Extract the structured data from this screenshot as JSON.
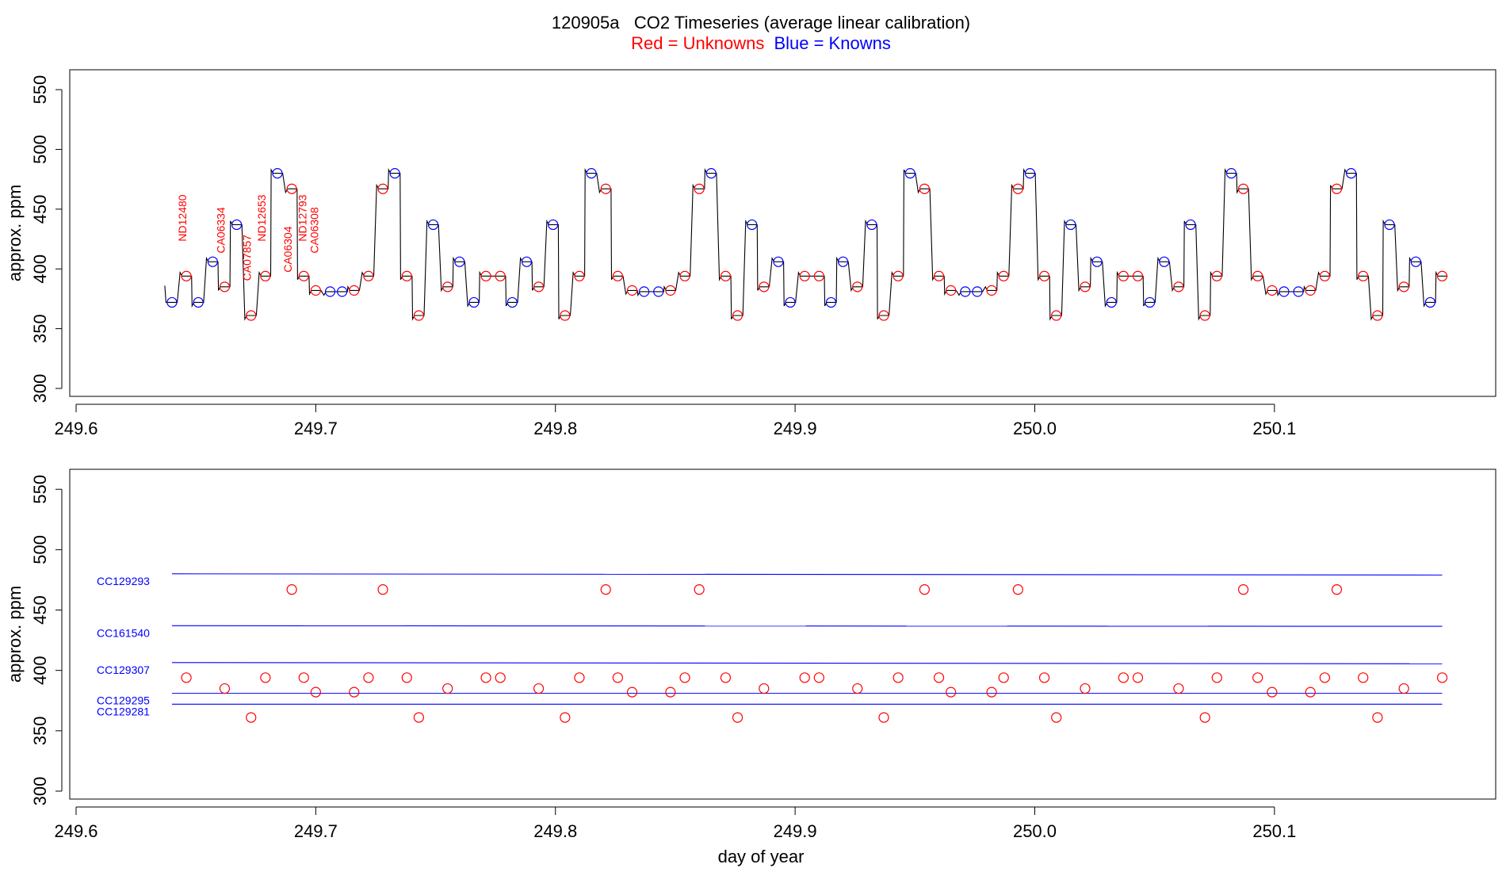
{
  "title": "120905a   CO2 Timeseries (average linear calibration)",
  "subtitle_red": "Red = Unknowns",
  "subtitle_blue": "Blue = Knowns",
  "colors": {
    "unknown": "#ff0000",
    "known": "#0000ff",
    "trace": "#000000",
    "axis": "#000000"
  },
  "xlabel": "day of year",
  "chart_data": [
    {
      "type": "line",
      "panel": "top",
      "ylabel": "approx. ppm",
      "xlim": [
        249.6,
        250.19
      ],
      "ylim": [
        300,
        560
      ],
      "xticks": [
        249.6,
        249.7,
        249.8,
        249.9,
        250.0,
        250.1
      ],
      "xtick_labels": [
        "249.6",
        "249.7",
        "249.8",
        "249.9",
        "250.0",
        "250.1"
      ],
      "yticks": [
        300,
        350,
        400,
        450,
        500,
        550
      ],
      "ytick_labels": [
        "300",
        "350",
        "400",
        "450",
        "500",
        "550"
      ],
      "grid": false,
      "annotations": [
        {
          "text": "ND12480",
          "x": 249.646,
          "y": 423
        },
        {
          "text": "CA06334",
          "x": 249.662,
          "y": 413
        },
        {
          "text": "CA07857",
          "x": 249.673,
          "y": 390
        },
        {
          "text": "ND12653",
          "x": 249.679,
          "y": 423
        },
        {
          "text": "CA06304",
          "x": 249.69,
          "y": 397
        },
        {
          "text": "ND12793",
          "x": 249.696,
          "y": 423
        },
        {
          "text": "CA06308",
          "x": 249.701,
          "y": 413
        }
      ],
      "series": [
        {
          "name": "Unknowns",
          "marker": "circle",
          "color": "#ff0000",
          "x": [
            249.646,
            249.662,
            249.673,
            249.679,
            249.69,
            249.695,
            249.7,
            249.716,
            249.722,
            249.728,
            249.738,
            249.743,
            249.755,
            249.771,
            249.777,
            249.793,
            249.804,
            249.81,
            249.821,
            249.826,
            249.832,
            249.848,
            249.854,
            249.86,
            249.871,
            249.876,
            249.887,
            249.904,
            249.91,
            249.926,
            249.937,
            249.943,
            249.954,
            249.96,
            249.965,
            249.982,
            249.987,
            249.993,
            250.004,
            250.009,
            250.021,
            250.037,
            250.043,
            250.06,
            250.071,
            250.076,
            250.087,
            250.093,
            250.099,
            250.115,
            250.121,
            250.126,
            250.137,
            250.143,
            250.154,
            250.17
          ],
          "y": [
            394,
            385,
            361,
            394,
            467,
            394,
            382,
            382,
            394,
            467,
            394,
            361,
            385,
            394,
            394,
            385,
            361,
            394,
            467,
            394,
            382,
            382,
            394,
            467,
            394,
            361,
            385,
            394,
            394,
            385,
            361,
            394,
            467,
            394,
            382,
            382,
            394,
            467,
            394,
            361,
            385,
            394,
            394,
            385,
            361,
            394,
            467,
            394,
            382,
            382,
            394,
            467,
            394,
            361,
            385,
            394
          ]
        },
        {
          "name": "Knowns",
          "marker": "circle",
          "color": "#0000ff",
          "x": [
            249.64,
            249.651,
            249.657,
            249.667,
            249.684,
            249.706,
            249.711,
            249.733,
            249.749,
            249.76,
            249.766,
            249.782,
            249.788,
            249.799,
            249.815,
            249.837,
            249.843,
            249.865,
            249.882,
            249.893,
            249.898,
            249.915,
            249.92,
            249.932,
            249.948,
            249.971,
            249.976,
            249.998,
            250.015,
            250.026,
            250.032,
            250.048,
            250.054,
            250.065,
            250.082,
            250.104,
            250.11,
            250.132,
            250.148,
            250.159,
            250.165
          ],
          "y": [
            372,
            372,
            406,
            437,
            480,
            381,
            381,
            480,
            437,
            406,
            372,
            372,
            406,
            437,
            480,
            381,
            381,
            480,
            437,
            406,
            372,
            372,
            406,
            437,
            480,
            381,
            381,
            480,
            437,
            406,
            372,
            372,
            406,
            437,
            480,
            381,
            381,
            480,
            437,
            406,
            372
          ]
        }
      ]
    },
    {
      "type": "scatter",
      "panel": "bottom",
      "ylabel": "approx. ppm",
      "xlabel": "day of year",
      "xlim": [
        249.6,
        250.19
      ],
      "ylim": [
        300,
        560
      ],
      "xticks": [
        249.6,
        249.7,
        249.8,
        249.9,
        250.0,
        250.1
      ],
      "xtick_labels": [
        "249.6",
        "249.7",
        "249.8",
        "249.9",
        "250.0",
        "250.1"
      ],
      "yticks": [
        300,
        350,
        400,
        450,
        500,
        550
      ],
      "ytick_labels": [
        "300",
        "350",
        "400",
        "450",
        "500",
        "550"
      ],
      "grid": false,
      "reference_lines": [
        {
          "name": "CC129293",
          "x": [
            249.64,
            250.17
          ],
          "y": [
            480.0,
            479.0
          ]
        },
        {
          "name": "CC161540",
          "x": [
            249.64,
            250.17
          ],
          "y": [
            437.0,
            436.5
          ]
        },
        {
          "name": "CC129307",
          "x": [
            249.64,
            250.17
          ],
          "y": [
            406.5,
            405.5
          ]
        },
        {
          "name": "CC129295",
          "x": [
            249.64,
            250.17
          ],
          "y": [
            381.0,
            381.0
          ]
        },
        {
          "name": "CC129281",
          "x": [
            249.64,
            250.17
          ],
          "y": [
            372.0,
            372.0
          ]
        }
      ],
      "series": [
        {
          "name": "Unknowns",
          "marker": "circle",
          "color": "#ff0000",
          "x": [
            249.646,
            249.662,
            249.673,
            249.679,
            249.69,
            249.695,
            249.7,
            249.716,
            249.722,
            249.728,
            249.738,
            249.743,
            249.755,
            249.771,
            249.777,
            249.793,
            249.804,
            249.81,
            249.821,
            249.826,
            249.832,
            249.848,
            249.854,
            249.86,
            249.871,
            249.876,
            249.887,
            249.904,
            249.91,
            249.926,
            249.937,
            249.943,
            249.954,
            249.96,
            249.965,
            249.982,
            249.987,
            249.993,
            250.004,
            250.009,
            250.021,
            250.037,
            250.043,
            250.06,
            250.071,
            250.076,
            250.087,
            250.093,
            250.099,
            250.115,
            250.121,
            250.126,
            250.137,
            250.143,
            250.154,
            250.17
          ],
          "y": [
            394,
            385,
            361,
            394,
            467,
            394,
            382,
            382,
            394,
            467,
            394,
            361,
            385,
            394,
            394,
            385,
            361,
            394,
            467,
            394,
            382,
            382,
            394,
            467,
            394,
            361,
            385,
            394,
            394,
            385,
            361,
            394,
            467,
            394,
            382,
            382,
            394,
            467,
            394,
            361,
            385,
            394,
            394,
            385,
            361,
            394,
            467,
            394,
            382,
            382,
            394,
            467,
            394,
            361,
            385,
            394
          ]
        }
      ]
    }
  ]
}
